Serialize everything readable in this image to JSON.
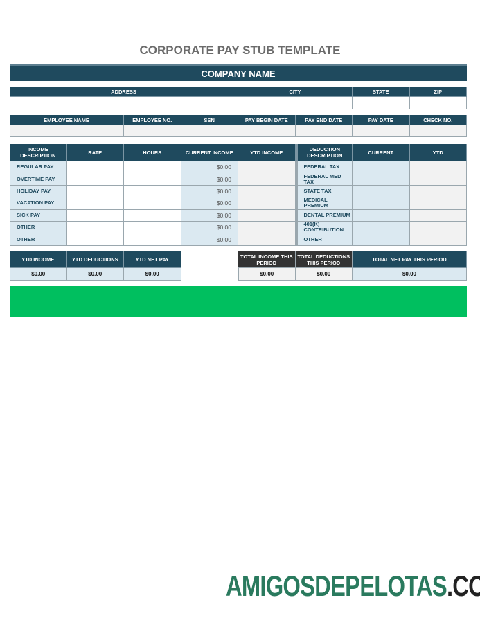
{
  "title": "CORPORATE PAY STUB TEMPLATE",
  "company_name": "COMPANY NAME",
  "address_headers": [
    "ADDRESS",
    "CITY",
    "STATE",
    "ZIP"
  ],
  "employee_headers": [
    "EMPLOYEE NAME",
    "EMPLOYEE NO.",
    "SSN",
    "PAY BEGIN DATE",
    "PAY END DATE",
    "PAY DATE",
    "CHECK NO."
  ],
  "income_headers": [
    "INCOME DESCRIPTION",
    "RATE",
    "HOURS",
    "CURRENT INCOME",
    "YTD INCOME",
    "DEDUCTION DESCRIPTION",
    "CURRENT",
    "YTD"
  ],
  "rows": [
    {
      "income": "REGULAR PAY",
      "current": "$0.00",
      "deduction": "FEDERAL TAX"
    },
    {
      "income": "OVERTIME PAY",
      "current": "$0.00",
      "deduction": "FEDERAL MED TAX"
    },
    {
      "income": "HOLIDAY PAY",
      "current": "$0.00",
      "deduction": "STATE TAX"
    },
    {
      "income": "VACATION PAY",
      "current": "$0.00",
      "deduction": "MEDICAL PREMIUM"
    },
    {
      "income": "SICK PAY",
      "current": "$0.00",
      "deduction": "DENTAL PREMIUM"
    },
    {
      "income": "OTHER",
      "current": "$0.00",
      "deduction": "401(K) CONTRIBUTION"
    },
    {
      "income": "OTHER",
      "current": "$0.00",
      "deduction": "OTHER"
    }
  ],
  "summary": {
    "ytd_income_label": "YTD INCOME",
    "ytd_income": "$0.00",
    "ytd_deductions_label": "YTD DEDUCTIONS",
    "ytd_deductions": "$0.00",
    "ytd_net_label": "YTD NET PAY",
    "ytd_net": "$0.00",
    "total_income_label": "TOTAL INCOME THIS PERIOD",
    "total_income": "$0.00",
    "total_deductions_label": "TOTAL DEDUCTIONS THIS PERIOD",
    "total_deductions": "$0.00",
    "total_net_label": "TOTAL NET PAY THIS PERIOD",
    "total_net": "$0.00"
  },
  "watermark": {
    "main": "AMIGOSDEPELOTAS",
    "suffix": ".COM"
  },
  "colors": {
    "header": "#1f4a5e",
    "light_blue": "#dbe9f1",
    "green_band": "#00bf5f",
    "logo": "#2a7a5e"
  }
}
